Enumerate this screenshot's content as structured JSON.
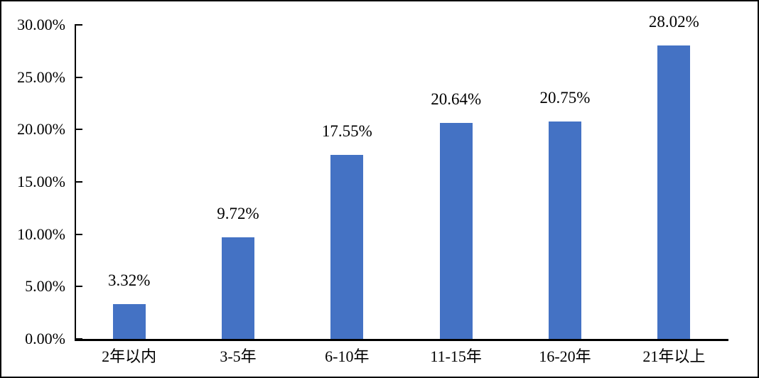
{
  "chart_data": {
    "type": "bar",
    "title": "",
    "xlabel": "",
    "ylabel": "",
    "categories": [
      "2年以内",
      "3-5年",
      "6-10年",
      "11-15年",
      "16-20年",
      "21年以上"
    ],
    "values": [
      3.32,
      9.72,
      17.55,
      20.64,
      20.75,
      28.02
    ],
    "data_labels": [
      "3.32%",
      "9.72%",
      "17.55%",
      "20.64%",
      "20.75%",
      "28.02%"
    ],
    "y_ticks": [
      {
        "label": "30.00%",
        "value": 30
      },
      {
        "label": "25.00%",
        "value": 25
      },
      {
        "label": "20.00%",
        "value": 20
      },
      {
        "label": "15.00%",
        "value": 15
      },
      {
        "label": "10.00%",
        "value": 10
      },
      {
        "label": "5.00%",
        "value": 5
      },
      {
        "label": "0.00%",
        "value": 0
      }
    ],
    "ylim": [
      0,
      30
    ],
    "grid": false,
    "legend": false,
    "bar_color": "#4472C4",
    "axis_color": "#000000",
    "text_color": "#000000",
    "background_color": "#FFFFFF",
    "frame_color": "#000000"
  }
}
